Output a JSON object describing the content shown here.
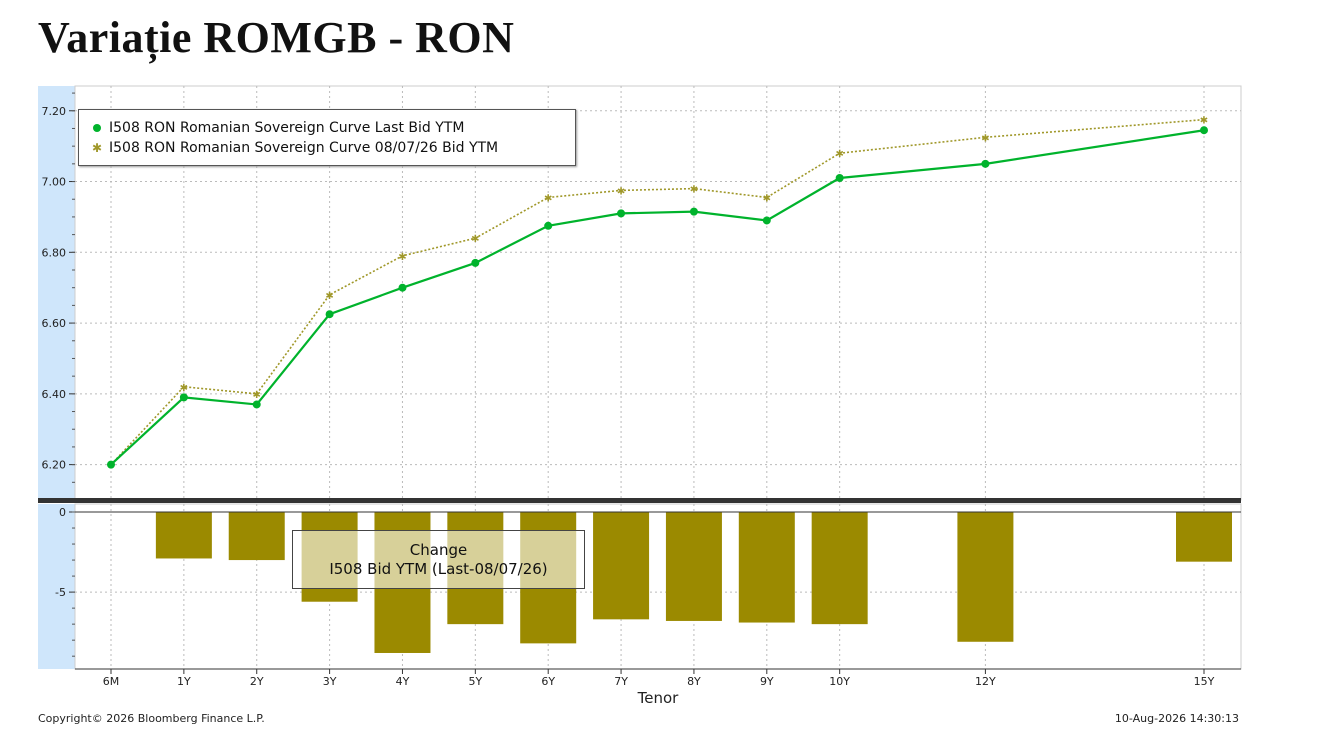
{
  "title": "Variație ROMGB - RON",
  "colors": {
    "last": "#00b32c",
    "prev": "#a0982a",
    "bars": "#9b8a00",
    "axis_band": "#cfe6fb",
    "separator": "#333333"
  },
  "footer": {
    "copyright": "Copyright© 2026 Bloomberg Finance L.P.",
    "timestamp": "10-Aug-2026 14:30:13"
  },
  "top_legend": {
    "series1": "I508 RON Romanian Sovereign Curve Last Bid YTM",
    "series2": "I508 RON Romanian Sovereign Curve 08/07/26 Bid YTM"
  },
  "bottom_legend": {
    "line1": "Change",
    "line2": "I508 Bid YTM (Last-08/07/26)"
  },
  "chart_data": [
    {
      "type": "line",
      "title": "",
      "x": [
        "6M",
        "1Y",
        "2Y",
        "3Y",
        "4Y",
        "5Y",
        "6Y",
        "7Y",
        "8Y",
        "9Y",
        "10Y",
        "12Y",
        "15Y"
      ],
      "x_positions_years": [
        0.5,
        1,
        1.5,
        2,
        2.5,
        3,
        3.5,
        4,
        4.5,
        5,
        5.5,
        6.5,
        8
      ],
      "series": [
        {
          "name": "I508 RON Romanian Sovereign Curve Last Bid YTM",
          "values": [
            6.2,
            6.39,
            6.37,
            6.625,
            6.7,
            6.77,
            6.875,
            6.91,
            6.915,
            6.89,
            7.01,
            7.05,
            7.145
          ]
        },
        {
          "name": "I508 RON Romanian Sovereign Curve 08/07/26 Bid YTM",
          "values": [
            6.2,
            6.42,
            6.4,
            6.68,
            6.79,
            6.84,
            6.955,
            6.975,
            6.98,
            6.955,
            7.08,
            7.125,
            7.175
          ]
        }
      ],
      "yticks": [
        "7.20",
        "7.00",
        "6.80",
        "6.60",
        "6.40",
        "6.20"
      ],
      "ylim": [
        6.1,
        7.27
      ],
      "grid": true,
      "legend": "top-left"
    },
    {
      "type": "bar",
      "title": "",
      "xlabel": "Tenor",
      "categories": [
        "1Y",
        "2Y",
        "3Y",
        "4Y",
        "5Y",
        "6Y",
        "7Y",
        "8Y",
        "9Y",
        "10Y",
        "12Y",
        "15Y"
      ],
      "series": [
        {
          "name": "I508 Bid YTM (Last-08/07/26)",
          "values": [
            -2.9,
            -3.0,
            -5.6,
            -8.8,
            -7.0,
            -8.2,
            -6.7,
            -6.8,
            -6.9,
            -7.0,
            -8.1,
            -3.1
          ]
        }
      ],
      "yticks": [
        "0",
        "-5"
      ],
      "ylim": [
        -9.8,
        0.5
      ],
      "grid": true,
      "legend": "top-center"
    }
  ]
}
